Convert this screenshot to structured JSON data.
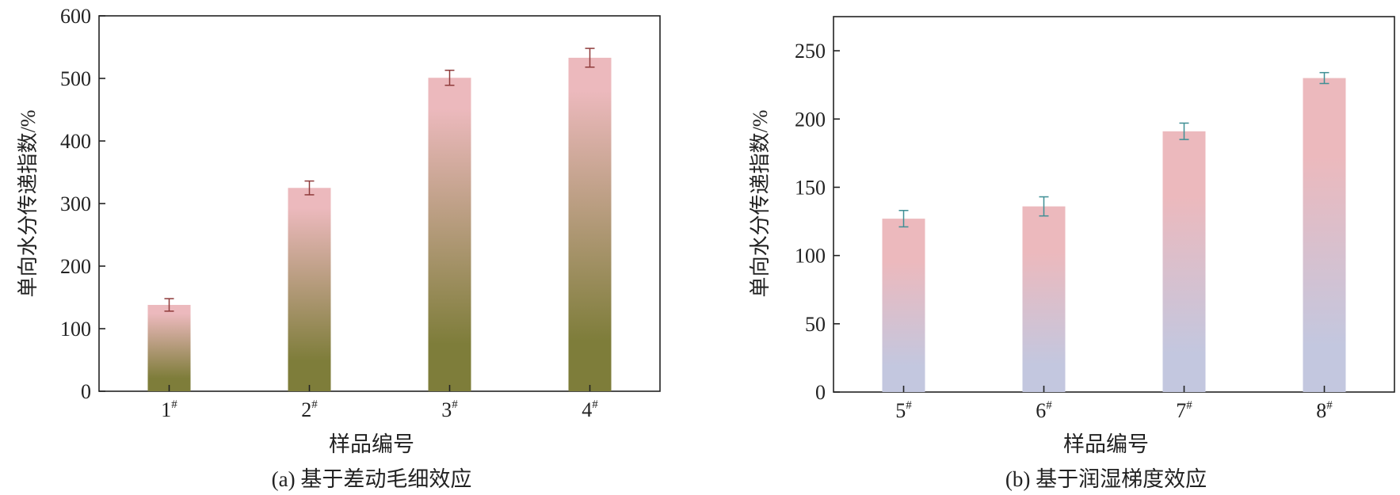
{
  "chart_data": [
    {
      "type": "bar",
      "categories": [
        "1",
        "2",
        "3",
        "4"
      ],
      "category_superscript": "#",
      "values": [
        138,
        325,
        501,
        533
      ],
      "error": [
        10,
        11,
        12,
        15
      ],
      "ylabel": "单向水分传递指数/%",
      "xlabel": "样品编号",
      "caption": "(a) 基于差动毛细效应",
      "ylim": [
        0,
        600
      ],
      "yticks": [
        0,
        100,
        200,
        300,
        400,
        500,
        600
      ],
      "gradient": [
        "#ecb9bd",
        "#7e7d3a"
      ],
      "error_color": "#8e3a3a",
      "grid": false
    },
    {
      "type": "bar",
      "categories": [
        "5",
        "6",
        "7",
        "8"
      ],
      "category_superscript": "#",
      "values": [
        127,
        136,
        191,
        230
      ],
      "error": [
        6,
        7,
        6,
        4
      ],
      "ylabel": "单向水分传递指数/%",
      "xlabel": "样品编号",
      "caption": "(b) 基于润湿梯度效应",
      "ylim": [
        0,
        275
      ],
      "yticks": [
        0,
        50,
        100,
        150,
        200,
        250
      ],
      "gradient": [
        "#ecb9bd",
        "#c3c7df"
      ],
      "error_color": "#3f8f95",
      "grid": false
    }
  ]
}
